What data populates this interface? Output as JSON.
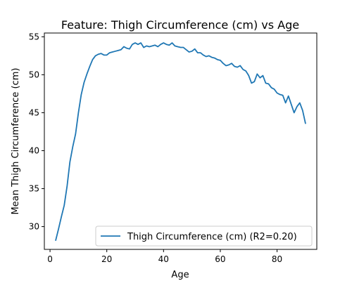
{
  "chart_data": {
    "type": "line",
    "title": "Feature: Thigh Circumference (cm) vs Age",
    "xlabel": "Age",
    "ylabel": "Mean Thigh Circumference (cm)",
    "xlim": [
      -2,
      94
    ],
    "ylim": [
      27.0,
      55.5
    ],
    "xticks": [
      0,
      20,
      40,
      60,
      80
    ],
    "yticks": [
      30,
      35,
      40,
      45,
      50,
      55
    ],
    "grid": false,
    "legend_position": "lower-right",
    "series": [
      {
        "name": "Thigh Circumference (cm) (R2=0.20)",
        "color": "#1f77b4",
        "x": [
          2,
          3,
          4,
          5,
          6,
          7,
          8,
          9,
          10,
          11,
          12,
          13,
          14,
          15,
          16,
          17,
          18,
          19,
          20,
          21,
          22,
          23,
          24,
          25,
          26,
          27,
          28,
          29,
          30,
          31,
          32,
          33,
          34,
          35,
          36,
          37,
          38,
          39,
          40,
          41,
          42,
          43,
          44,
          45,
          46,
          47,
          48,
          49,
          50,
          51,
          52,
          53,
          54,
          55,
          56,
          57,
          58,
          59,
          60,
          61,
          62,
          63,
          64,
          65,
          66,
          67,
          68,
          69,
          70,
          71,
          72,
          73,
          74,
          75,
          76,
          77,
          78,
          79,
          80,
          81,
          82,
          83,
          84,
          85,
          86,
          87,
          88,
          89,
          90
        ],
        "y": [
          28.2,
          29.7,
          31.3,
          32.8,
          35.3,
          38.5,
          40.5,
          42.2,
          45.0,
          47.4,
          49.0,
          50.1,
          51.1,
          52.0,
          52.5,
          52.7,
          52.8,
          52.6,
          52.6,
          52.9,
          53.0,
          53.1,
          53.2,
          53.3,
          53.7,
          53.5,
          53.4,
          54.0,
          54.2,
          54.0,
          54.2,
          53.6,
          53.8,
          53.7,
          53.8,
          53.9,
          53.7,
          54.0,
          54.2,
          54.0,
          53.9,
          54.2,
          53.8,
          53.7,
          53.6,
          53.6,
          53.3,
          53.0,
          53.1,
          53.4,
          52.9,
          52.9,
          52.6,
          52.4,
          52.5,
          52.3,
          52.2,
          52.0,
          51.9,
          51.5,
          51.2,
          51.3,
          51.5,
          51.1,
          51.0,
          51.2,
          50.7,
          50.5,
          49.9,
          48.9,
          49.1,
          50.1,
          49.6,
          49.9,
          48.9,
          48.8,
          48.3,
          48.1,
          47.6,
          47.4,
          47.3,
          46.3,
          47.2,
          46.1,
          45.0,
          45.8,
          46.3,
          45.3,
          43.6
        ]
      }
    ]
  }
}
